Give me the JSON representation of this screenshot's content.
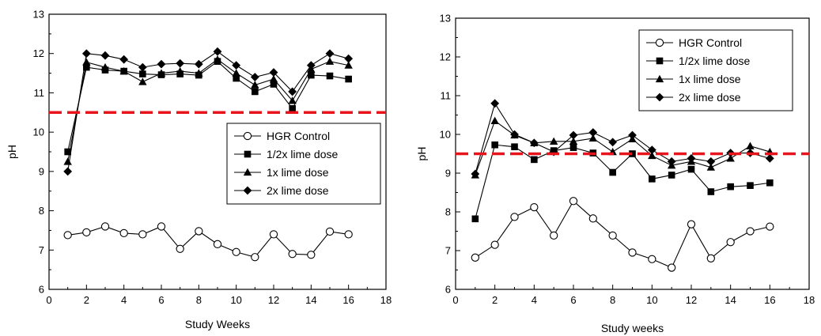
{
  "chart_data": [
    {
      "type": "line",
      "title": "",
      "xlabel": "Study Weeks",
      "ylabel": "pH",
      "xlim": [
        0,
        18
      ],
      "ylim": [
        6,
        13
      ],
      "xticks": [
        0,
        2,
        4,
        6,
        8,
        10,
        12,
        14,
        16,
        18
      ],
      "yticks": [
        6,
        7,
        8,
        9,
        10,
        11,
        12,
        13
      ],
      "grid": false,
      "legend_position": "center-right",
      "threshold": {
        "y": 10.5,
        "color": "#e8141b",
        "style": "dashed"
      },
      "x": [
        1,
        2,
        3,
        4,
        5,
        6,
        7,
        8,
        9,
        10,
        11,
        12,
        13,
        14,
        15,
        16
      ],
      "series": [
        {
          "name": "HGR Control",
          "marker": "open-circle",
          "values": [
            7.38,
            7.45,
            7.6,
            7.43,
            7.4,
            7.6,
            7.03,
            7.48,
            7.15,
            6.95,
            6.82,
            7.4,
            6.9,
            6.88,
            7.47,
            7.4
          ]
        },
        {
          "name": "1/2x lime dose",
          "marker": "filled-square",
          "values": [
            9.5,
            11.65,
            11.58,
            11.55,
            11.48,
            11.46,
            11.48,
            11.45,
            11.8,
            11.37,
            11.03,
            11.22,
            10.6,
            11.45,
            11.43,
            11.35
          ]
        },
        {
          "name": "1x lime dose",
          "marker": "filled-triangle",
          "values": [
            9.25,
            11.78,
            11.65,
            11.55,
            11.28,
            11.5,
            11.55,
            11.5,
            11.85,
            11.5,
            11.2,
            11.35,
            10.8,
            11.6,
            11.8,
            11.7
          ]
        },
        {
          "name": "2x lime dose",
          "marker": "filled-diamond",
          "values": [
            9.0,
            12.0,
            11.95,
            11.85,
            11.65,
            11.73,
            11.75,
            11.73,
            12.05,
            11.7,
            11.4,
            11.52,
            11.03,
            11.7,
            12.0,
            11.87
          ]
        }
      ]
    },
    {
      "type": "line",
      "title": "",
      "xlabel": "Study weeks",
      "ylabel": "pH",
      "xlim": [
        0,
        18
      ],
      "ylim": [
        6,
        13
      ],
      "xticks": [
        0,
        2,
        4,
        6,
        8,
        10,
        12,
        14,
        16,
        18
      ],
      "yticks": [
        6,
        7,
        8,
        9,
        10,
        11,
        12,
        13
      ],
      "grid": false,
      "legend_position": "top-right",
      "threshold": {
        "y": 9.5,
        "color": "#e8141b",
        "style": "dashed"
      },
      "x": [
        1,
        2,
        3,
        4,
        5,
        6,
        7,
        8,
        9,
        10,
        11,
        12,
        13,
        14,
        15,
        16
      ],
      "series": [
        {
          "name": "HGR Control",
          "marker": "open-circle",
          "values": [
            6.82,
            7.15,
            7.87,
            8.12,
            7.39,
            8.28,
            7.83,
            7.39,
            6.95,
            6.78,
            6.56,
            7.68,
            6.8,
            7.22,
            7.5,
            7.62
          ]
        },
        {
          "name": "1/2x lime dose",
          "marker": "filled-square",
          "values": [
            7.82,
            9.73,
            9.68,
            9.35,
            9.58,
            9.66,
            9.52,
            9.02,
            9.5,
            8.85,
            8.95,
            9.1,
            8.52,
            8.65,
            8.68,
            8.75
          ]
        },
        {
          "name": "1x lime dose",
          "marker": "filled-triangle",
          "values": [
            8.95,
            10.35,
            9.98,
            9.78,
            9.82,
            9.82,
            9.9,
            9.55,
            9.88,
            9.45,
            9.2,
            9.3,
            9.15,
            9.38,
            9.7,
            9.55
          ]
        },
        {
          "name": "2x lime dose",
          "marker": "filled-diamond",
          "values": [
            8.98,
            10.8,
            10.0,
            9.78,
            9.55,
            9.98,
            10.05,
            9.8,
            9.98,
            9.6,
            9.3,
            9.38,
            9.3,
            9.52,
            9.52,
            9.38
          ]
        }
      ]
    }
  ]
}
